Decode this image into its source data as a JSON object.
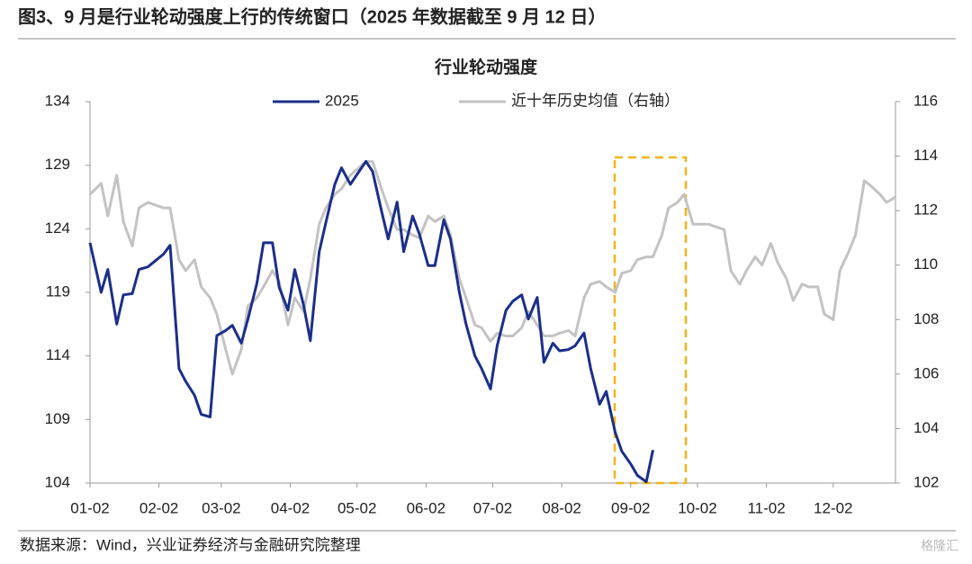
{
  "figure_title": "图3、9 月是行业轮动强度上行的传统窗口（2025 年数据截至 9 月 12 日）",
  "source": "数据来源：Wind，兴业证券经济与金融研究院整理",
  "watermark": "格隆汇",
  "chart_data": {
    "type": "line",
    "title": "行业轮动强度",
    "legend": "top",
    "x": [
      "01-02",
      "01-07",
      "01-10",
      "01-14",
      "01-17",
      "01-21",
      "01-24",
      "01-28",
      "02-04",
      "02-07",
      "02-11",
      "02-14",
      "02-18",
      "02-21",
      "02-25",
      "02-28",
      "03-04",
      "03-07",
      "03-11",
      "03-14",
      "03-18",
      "03-21",
      "03-25",
      "03-28",
      "04-01",
      "04-04",
      "04-08",
      "04-11",
      "04-15",
      "04-18",
      "04-22",
      "04-25",
      "04-29",
      "05-06",
      "05-09",
      "05-13",
      "05-16",
      "05-20",
      "05-23",
      "05-27",
      "05-30",
      "06-03",
      "06-06",
      "06-10",
      "06-13",
      "06-17",
      "06-20",
      "06-24",
      "06-27",
      "07-01",
      "07-04",
      "07-08",
      "07-11",
      "07-15",
      "07-18",
      "07-22",
      "07-25",
      "07-29",
      "08-01",
      "08-05",
      "08-08",
      "08-12",
      "08-15",
      "08-19",
      "08-22",
      "08-26",
      "08-29",
      "09-02",
      "09-05",
      "09-09",
      "09-12",
      "09-16",
      "09-19",
      "09-23",
      "09-26",
      "09-30",
      "10-07",
      "10-14",
      "10-17",
      "10-21",
      "10-24",
      "10-28",
      "10-31",
      "11-04",
      "11-07",
      "11-11",
      "11-14",
      "11-18",
      "11-21",
      "11-25",
      "11-28",
      "12-02",
      "12-05",
      "12-09",
      "12-12",
      "12-16",
      "12-19",
      "12-23",
      "12-26",
      "12-30"
    ],
    "xlim": [
      "01-02",
      "12-30"
    ],
    "xticks": [
      "01-02",
      "02-02",
      "03-02",
      "04-02",
      "05-02",
      "06-02",
      "07-02",
      "08-02",
      "09-02",
      "10-02",
      "11-02",
      "12-02"
    ],
    "ylim": [
      104,
      134
    ],
    "yticks": [
      104,
      109,
      114,
      119,
      124,
      129,
      134
    ],
    "y2lim": [
      102,
      116
    ],
    "y2ticks": [
      102,
      104,
      106,
      108,
      110,
      112,
      114,
      116
    ],
    "series": [
      {
        "name": "2025",
        "color": "#1b2f8a",
        "values": [
          122.9,
          119.0,
          120.8,
          116.5,
          118.8,
          118.9,
          120.8,
          121.0,
          122.0,
          122.7,
          113.0,
          112.0,
          110.9,
          109.4,
          109.2,
          115.6,
          116.0,
          116.4,
          115.0,
          116.9,
          119.7,
          122.9,
          122.9,
          119.4,
          117.6,
          120.8,
          118.0,
          115.2,
          122.2,
          124.5,
          127.5,
          128.8,
          127.5,
          129.3,
          128.5,
          125.4,
          123.2,
          126.1,
          122.2,
          125.0,
          123.6,
          121.1,
          121.1,
          124.7,
          123.2,
          119.0,
          116.5,
          114.0,
          113.0,
          111.4,
          114.8,
          117.6,
          118.3,
          118.8,
          116.9,
          118.6,
          113.5,
          115.0,
          114.4,
          114.5,
          114.8,
          115.8,
          113.0,
          110.2,
          111.2,
          108.0,
          106.5,
          105.5,
          104.6,
          104.1,
          106.6,
          null,
          null,
          null,
          null,
          null,
          null,
          null,
          null,
          null,
          null,
          null,
          null,
          null,
          null,
          null,
          null,
          null,
          null,
          null,
          null,
          null,
          null,
          null,
          null,
          null,
          null,
          null,
          null,
          null
        ]
      },
      {
        "name": "近十年历史均值（右轴）",
        "color": "#c3c3c3",
        "axis": "y2",
        "values": [
          112.6,
          113.0,
          111.8,
          113.3,
          111.6,
          110.7,
          112.1,
          112.3,
          112.1,
          112.1,
          110.2,
          109.8,
          110.2,
          109.2,
          108.8,
          108.2,
          106.9,
          106.0,
          106.9,
          108.5,
          108.8,
          109.2,
          109.8,
          109.4,
          107.8,
          108.8,
          108.3,
          109.5,
          111.5,
          112.1,
          112.6,
          112.8,
          113.3,
          113.8,
          113.8,
          112.8,
          112.1,
          111.3,
          111.3,
          111.1,
          111.0,
          111.8,
          111.6,
          111.8,
          111.1,
          109.5,
          108.8,
          107.8,
          107.7,
          107.2,
          107.5,
          107.4,
          107.4,
          107.7,
          108.3,
          107.8,
          107.4,
          107.4,
          107.5,
          107.6,
          107.4,
          108.8,
          109.3,
          109.4,
          109.2,
          109.0,
          109.7,
          109.8,
          110.2,
          110.3,
          110.3,
          111.1,
          112.1,
          112.3,
          112.6,
          111.5,
          111.5,
          111.3,
          109.8,
          109.3,
          109.8,
          110.3,
          110.0,
          110.8,
          110.1,
          109.5,
          108.7,
          109.3,
          109.2,
          109.2,
          108.2,
          108.0,
          109.8,
          110.5,
          111.1,
          113.1,
          112.9,
          112.6,
          112.3,
          112.5
        ]
      }
    ]
  }
}
